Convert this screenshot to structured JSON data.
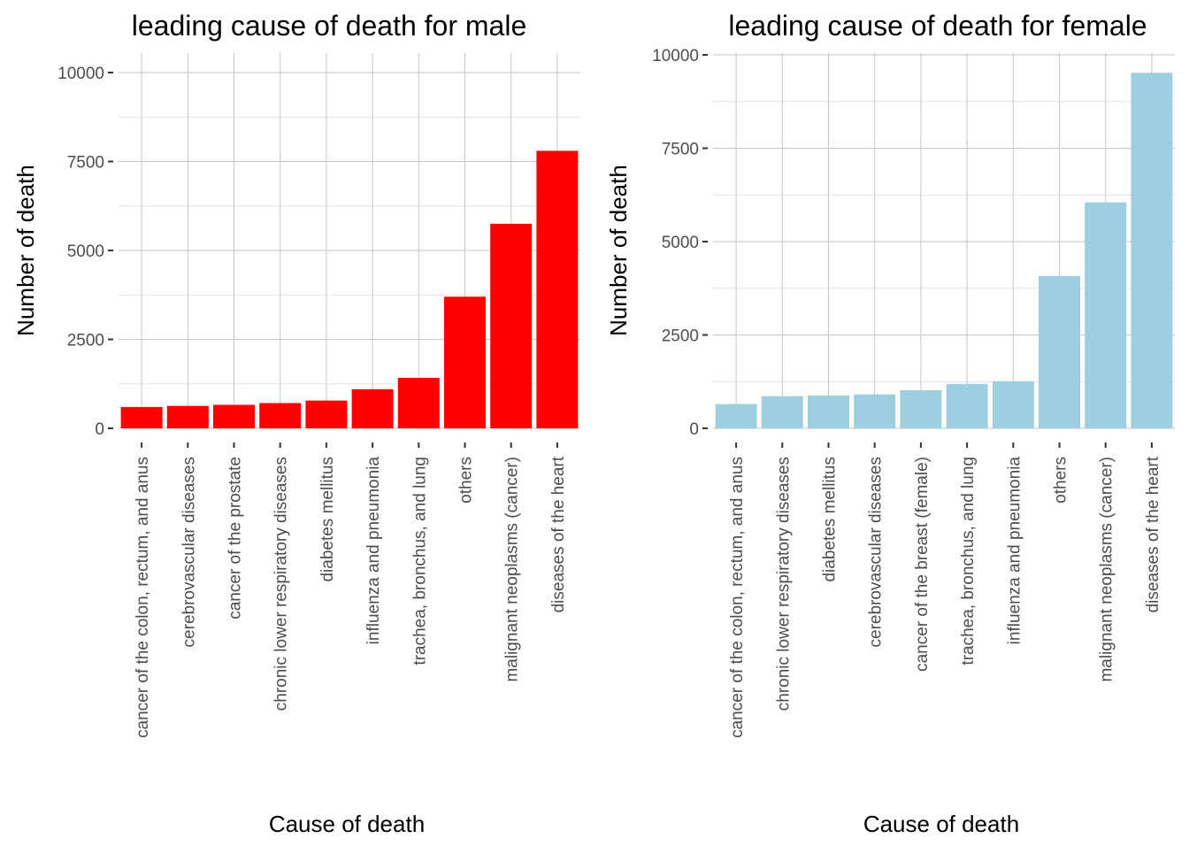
{
  "chart_data": [
    {
      "type": "bar",
      "title": "leading cause of death for male",
      "xlabel": "Cause of death",
      "ylabel": "Number of death",
      "ylim": [
        0,
        10000
      ],
      "yticks": [
        0,
        2500,
        5000,
        7500,
        10000
      ],
      "ytick_labels": [
        "0",
        "2500",
        "5000",
        "7500",
        "10000"
      ],
      "grid": true,
      "color": "#ff0000",
      "categories": [
        "cancer of the colon, rectum, and anus",
        "cerebrovascular diseases",
        "cancer of the prostate",
        "chronic lower respiratory diseases",
        "diabetes mellitus",
        "influenza and pneumonia",
        "trachea, bronchus, and lung",
        "others",
        "malignant neoplasms (cancer)",
        "diseases of the heart"
      ],
      "values": [
        600,
        630,
        660,
        710,
        780,
        1100,
        1420,
        3700,
        5750,
        7800
      ]
    },
    {
      "type": "bar",
      "title": "leading cause of death for female",
      "xlabel": "Cause of death",
      "ylabel": "Number of death",
      "ylim": [
        0,
        10000
      ],
      "yticks": [
        0,
        2500,
        5000,
        7500,
        10000
      ],
      "ytick_labels": [
        "0",
        "2500",
        "5000",
        "7500",
        "10000"
      ],
      "grid": true,
      "color": "#9ecfe0",
      "categories": [
        "cancer of the colon, rectum, and anus",
        "chronic lower respiratory diseases",
        "diabetes mellitus",
        "cerebrovascular diseases",
        "cancer of the breast (female)",
        "trachea, bronchus, and lung",
        "influenza and pneumonia",
        "others",
        "malignant neoplasms (cancer)",
        "diseases of the heart"
      ],
      "values": [
        650,
        860,
        880,
        910,
        1020,
        1190,
        1260,
        4080,
        6050,
        9520
      ]
    }
  ]
}
